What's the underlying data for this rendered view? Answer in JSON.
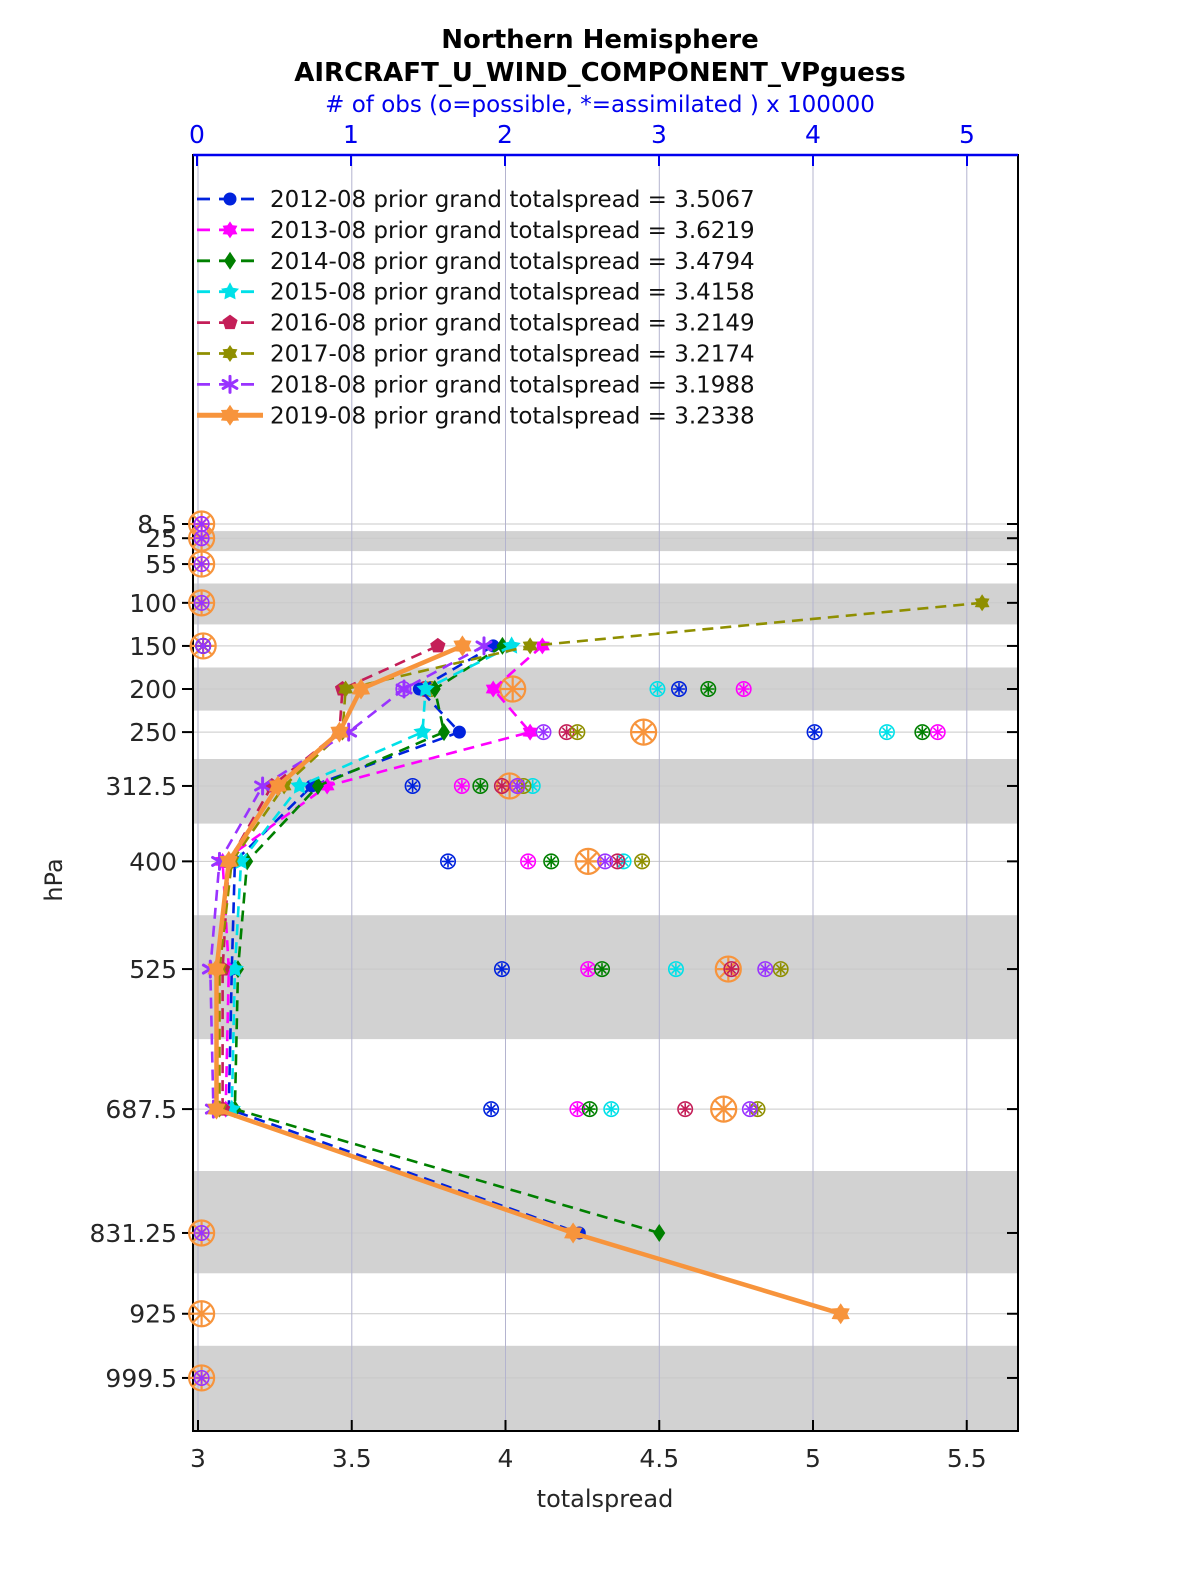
{
  "title": {
    "line1": "Northern Hemisphere",
    "line2": "AIRCRAFT_U_WIND_COMPONENT_VPguess"
  },
  "top_axis": {
    "label": "# of obs (o=possible, *=assimilated ) x 100000",
    "ticks": [
      0,
      1,
      2,
      3,
      4,
      5
    ],
    "color": "#0000EE"
  },
  "bottom_axis": {
    "label": "totalspread",
    "ticks": [
      "3",
      "3.5",
      "4",
      "4.5",
      "5",
      "5.5"
    ]
  },
  "left_axis": {
    "label": "hPa",
    "tick_labels": [
      "8.5",
      "25",
      "55",
      "100",
      "150",
      "200",
      "250",
      "312.5",
      "400",
      "525",
      "687.5",
      "831.25",
      "925",
      "999.5"
    ]
  },
  "chart_data": {
    "type": "line",
    "title": "Northern Hemisphere AIRCRAFT_U_WIND_COMPONENT_VPguess",
    "xlabel": "totalspread",
    "x2label": "# of obs (o=possible, *=assimilated ) x 100000",
    "ylabel": "hPa",
    "xlim": [
      3,
      5.66
    ],
    "x2lim": [
      0,
      5.33
    ],
    "obs_units": "x 100000",
    "grid": true,
    "legend_position": "top-left-inside",
    "levels_hpa": [
      8.5,
      25,
      55,
      100,
      150,
      200,
      250,
      312.5,
      400,
      525,
      687.5,
      831.25,
      925,
      999.5
    ],
    "shaded_levels": [
      25,
      100,
      200,
      312.5,
      525,
      831.25,
      999.5
    ],
    "band_color": "#d2d2d2",
    "series": [
      {
        "name": "2012-08",
        "legend": "2012-08 prior grand totalspread = 3.5067",
        "grand_totalspread": 3.5067,
        "color": "#0022DD",
        "marker": "circle",
        "line": "dashed",
        "profile": [
          {
            "level": 150,
            "value": 3.96
          },
          {
            "level": 200,
            "value": 3.72
          },
          {
            "level": 250,
            "value": 3.85
          },
          {
            "level": 312.5,
            "value": 3.37
          },
          {
            "level": 400,
            "value": 3.12
          },
          {
            "level": 525,
            "value": 3.11
          },
          {
            "level": 687.5,
            "value": 3.1
          },
          {
            "level": 831.25,
            "value": 4.24
          }
        ],
        "obs": [
          {
            "level": 150,
            "count": 0.04
          },
          {
            "level": 200,
            "count": 3.13
          },
          {
            "level": 250,
            "count": 4.01
          },
          {
            "level": 312.5,
            "count": 1.4
          },
          {
            "level": 400,
            "count": 1.63
          },
          {
            "level": 525,
            "count": 1.98
          },
          {
            "level": 687.5,
            "count": 1.91
          }
        ]
      },
      {
        "name": "2013-08",
        "legend": "2013-08 prior grand totalspread = 3.6219",
        "grand_totalspread": 3.6219,
        "color": "#FF00FF",
        "marker": "hexagram",
        "line": "dashed",
        "profile": [
          {
            "level": 150,
            "value": 4.12
          },
          {
            "level": 200,
            "value": 3.96
          },
          {
            "level": 250,
            "value": 4.08
          },
          {
            "level": 312.5,
            "value": 3.42
          },
          {
            "level": 400,
            "value": 3.08
          },
          {
            "level": 525,
            "value": 3.1
          },
          {
            "level": 687.5,
            "value": 3.09
          }
        ],
        "obs": [
          {
            "level": 8.5,
            "count": 0.03
          },
          {
            "level": 25,
            "count": 0.03
          },
          {
            "level": 150,
            "count": 0.04
          },
          {
            "level": 200,
            "count": 3.55
          },
          {
            "level": 250,
            "count": 4.81
          },
          {
            "level": 312.5,
            "count": 1.72
          },
          {
            "level": 400,
            "count": 2.15
          },
          {
            "level": 525,
            "count": 2.54
          },
          {
            "level": 687.5,
            "count": 2.47
          }
        ]
      },
      {
        "name": "2014-08",
        "legend": "2014-08 prior grand totalspread = 3.4794",
        "grand_totalspread": 3.4794,
        "color": "#008000",
        "marker": "diamond",
        "line": "dashed",
        "profile": [
          {
            "level": 150,
            "value": 3.99
          },
          {
            "level": 200,
            "value": 3.77
          },
          {
            "level": 250,
            "value": 3.8
          },
          {
            "level": 312.5,
            "value": 3.39
          },
          {
            "level": 400,
            "value": 3.16
          },
          {
            "level": 525,
            "value": 3.13
          },
          {
            "level": 687.5,
            "value": 3.12
          },
          {
            "level": 831.25,
            "value": 4.5
          }
        ],
        "obs": [
          {
            "level": 150,
            "count": 0.04
          },
          {
            "level": 200,
            "count": 3.32
          },
          {
            "level": 250,
            "count": 4.71
          },
          {
            "level": 312.5,
            "count": 1.84
          },
          {
            "level": 400,
            "count": 2.3
          },
          {
            "level": 525,
            "count": 2.63
          },
          {
            "level": 687.5,
            "count": 2.55
          }
        ]
      },
      {
        "name": "2015-08",
        "legend": "2015-08 prior grand totalspread = 3.4158",
        "grand_totalspread": 3.4158,
        "color": "#00E0E8",
        "marker": "pentagram",
        "line": "dashed",
        "profile": [
          {
            "level": 150,
            "value": 4.02
          },
          {
            "level": 200,
            "value": 3.74
          },
          {
            "level": 250,
            "value": 3.73
          },
          {
            "level": 312.5,
            "value": 3.33
          },
          {
            "level": 400,
            "value": 3.14
          },
          {
            "level": 525,
            "value": 3.12
          },
          {
            "level": 687.5,
            "value": 3.11
          }
        ],
        "obs": [
          {
            "level": 200,
            "count": 2.99
          },
          {
            "level": 250,
            "count": 4.48
          },
          {
            "level": 312.5,
            "count": 2.18
          },
          {
            "level": 400,
            "count": 2.77
          },
          {
            "level": 525,
            "count": 3.11
          },
          {
            "level": 687.5,
            "count": 2.69
          }
        ]
      },
      {
        "name": "2016-08",
        "legend": "2016-08 prior grand totalspread = 3.2149",
        "grand_totalspread": 3.2149,
        "color": "#C41E58",
        "marker": "pentagon",
        "line": "dashed",
        "profile": [
          {
            "level": 150,
            "value": 3.78
          },
          {
            "level": 200,
            "value": 3.47
          },
          {
            "level": 250,
            "value": 3.46
          },
          {
            "level": 312.5,
            "value": 3.24
          },
          {
            "level": 400,
            "value": 3.1
          },
          {
            "level": 525,
            "value": 3.08
          },
          {
            "level": 687.5,
            "value": 3.08
          }
        ],
        "obs": [
          {
            "level": 200,
            "count": 1.48
          },
          {
            "level": 250,
            "count": 2.4
          },
          {
            "level": 312.5,
            "count": 1.98
          },
          {
            "level": 400,
            "count": 2.73
          },
          {
            "level": 525,
            "count": 3.47
          },
          {
            "level": 687.5,
            "count": 3.17
          }
        ]
      },
      {
        "name": "2017-08",
        "legend": "2017-08 prior grand totalspread = 3.2174",
        "grand_totalspread": 3.2174,
        "color": "#8F8F00",
        "marker": "hexagram",
        "line": "dashed",
        "profile": [
          {
            "level": 100,
            "value": 5.55
          },
          {
            "level": 150,
            "value": 4.08
          },
          {
            "level": 200,
            "value": 3.48
          },
          {
            "level": 250,
            "value": 3.47
          },
          {
            "level": 312.5,
            "value": 3.28
          },
          {
            "level": 400,
            "value": 3.11
          },
          {
            "level": 525,
            "value": 3.07
          },
          {
            "level": 687.5,
            "value": 3.07
          }
        ],
        "obs": [
          {
            "level": 200,
            "count": 1.52
          },
          {
            "level": 250,
            "count": 2.47
          },
          {
            "level": 312.5,
            "count": 2.12
          },
          {
            "level": 400,
            "count": 2.89
          },
          {
            "level": 525,
            "count": 3.79
          },
          {
            "level": 687.5,
            "count": 3.64
          }
        ]
      },
      {
        "name": "2018-08",
        "legend": "2018-08 prior grand totalspread = 3.1988",
        "grand_totalspread": 3.1988,
        "color": "#9933FF",
        "marker": "asterisk",
        "line": "dashed",
        "profile": [
          {
            "level": 150,
            "value": 3.93
          },
          {
            "level": 200,
            "value": 3.67
          },
          {
            "level": 250,
            "value": 3.49
          },
          {
            "level": 312.5,
            "value": 3.21
          },
          {
            "level": 400,
            "value": 3.07
          },
          {
            "level": 525,
            "value": 3.04
          },
          {
            "level": 687.5,
            "value": 3.05
          }
        ],
        "obs": [
          {
            "level": 8.5,
            "count": 0.03
          },
          {
            "level": 25,
            "count": 0.03
          },
          {
            "level": 55,
            "count": 0.03
          },
          {
            "level": 100,
            "count": 0.03
          },
          {
            "level": 150,
            "count": 0.04
          },
          {
            "level": 200,
            "count": 1.34
          },
          {
            "level": 250,
            "count": 2.25
          },
          {
            "level": 312.5,
            "count": 2.08
          },
          {
            "level": 400,
            "count": 2.65
          },
          {
            "level": 525,
            "count": 3.69
          },
          {
            "level": 687.5,
            "count": 3.59
          },
          {
            "level": 831.25,
            "count": 0.03
          },
          {
            "level": 999.5,
            "count": 0.03
          }
        ]
      },
      {
        "name": "2019-08",
        "legend": "2019-08 prior grand totalspread = 3.2338",
        "grand_totalspread": 3.2338,
        "color": "#F7943C",
        "marker": "hexagram",
        "line": "solid",
        "obs_marker_size": "large",
        "profile": [
          {
            "level": 150,
            "value": 3.86
          },
          {
            "level": 200,
            "value": 3.53
          },
          {
            "level": 250,
            "value": 3.46
          },
          {
            "level": 312.5,
            "value": 3.26
          },
          {
            "level": 400,
            "value": 3.1
          },
          {
            "level": 525,
            "value": 3.06
          },
          {
            "level": 687.5,
            "value": 3.06
          },
          {
            "level": 831.25,
            "value": 4.22
          },
          {
            "level": 925,
            "value": 5.09
          }
        ],
        "obs": [
          {
            "level": 8.5,
            "count": 0.03
          },
          {
            "level": 25,
            "count": 0.03
          },
          {
            "level": 55,
            "count": 0.03
          },
          {
            "level": 100,
            "count": 0.03
          },
          {
            "level": 150,
            "count": 0.04
          },
          {
            "level": 200,
            "count": 2.05
          },
          {
            "level": 250,
            "count": 2.9
          },
          {
            "level": 312.5,
            "count": 2.03
          },
          {
            "level": 400,
            "count": 2.54
          },
          {
            "level": 525,
            "count": 3.45
          },
          {
            "level": 687.5,
            "count": 3.42
          },
          {
            "level": 831.25,
            "count": 0.03
          },
          {
            "level": 925,
            "count": 0.03
          },
          {
            "level": 999.5,
            "count": 0.03
          }
        ]
      }
    ]
  }
}
